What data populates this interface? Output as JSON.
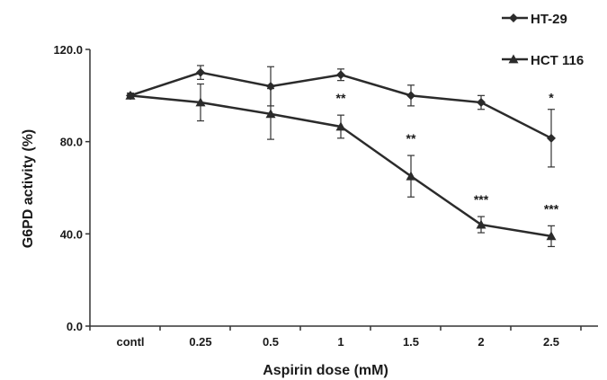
{
  "chart_data": {
    "type": "line",
    "categories": [
      "contl",
      "0.25",
      "0.5",
      "1",
      "1.5",
      "2",
      "2.5"
    ],
    "xlabel": "Aspirin dose (mM)",
    "ylabel": "G6PD activity (%)",
    "ylim": [
      0,
      120
    ],
    "yticks": [
      "0.0",
      "40.0",
      "80.0",
      "120.0"
    ],
    "ytick_values": [
      0,
      40,
      80,
      120
    ],
    "grid": false,
    "legend_position": "top-right",
    "series": [
      {
        "name": "HT-29",
        "marker": "diamond",
        "values": [
          100,
          110,
          104,
          109,
          100,
          97,
          81.5
        ],
        "errors": [
          1,
          3,
          8.5,
          2.5,
          4.5,
          3,
          12.5
        ]
      },
      {
        "name": "HCT 116",
        "marker": "triangle",
        "values": [
          100,
          97,
          92,
          86.5,
          65,
          44,
          39
        ],
        "errors": [
          1,
          8,
          11,
          5,
          9,
          3.5,
          4.5
        ]
      }
    ],
    "annotations": [
      {
        "category": "1",
        "text": "**"
      },
      {
        "category": "1.5",
        "text": "**"
      },
      {
        "category": "2",
        "text": "***"
      },
      {
        "category": "2.5",
        "text": "***"
      },
      {
        "category": "2.5",
        "text": "*"
      }
    ]
  },
  "colors": {
    "line": "#2b2b2b",
    "axis": "#333333"
  }
}
